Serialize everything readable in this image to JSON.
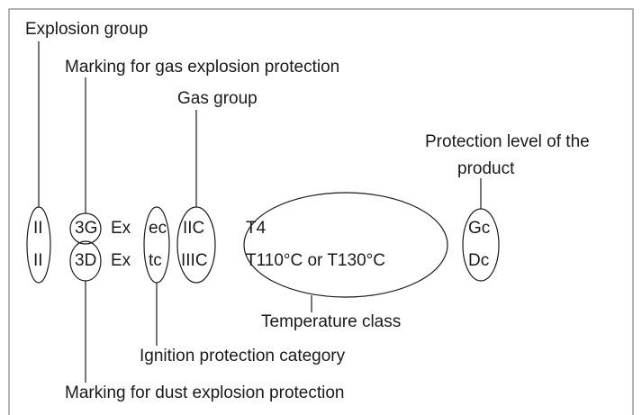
{
  "labels": {
    "explosion_group": "Explosion group",
    "gas_marking": "Marking for gas explosion protection",
    "gas_group": "Gas group",
    "protection_level": [
      "Protection level of the",
      "product"
    ],
    "temperature_class": "Temperature class",
    "ignition_category": "Ignition protection category",
    "dust_marking": "Marking for dust explosion protection"
  },
  "rows": [
    [
      "II",
      "3G",
      "Ex",
      "ec",
      "IIC",
      "T4",
      "Gc"
    ],
    [
      "II",
      "3D",
      "Ex",
      "tc",
      "IIIC",
      "T110°C or T130°C",
      "Dc"
    ]
  ]
}
